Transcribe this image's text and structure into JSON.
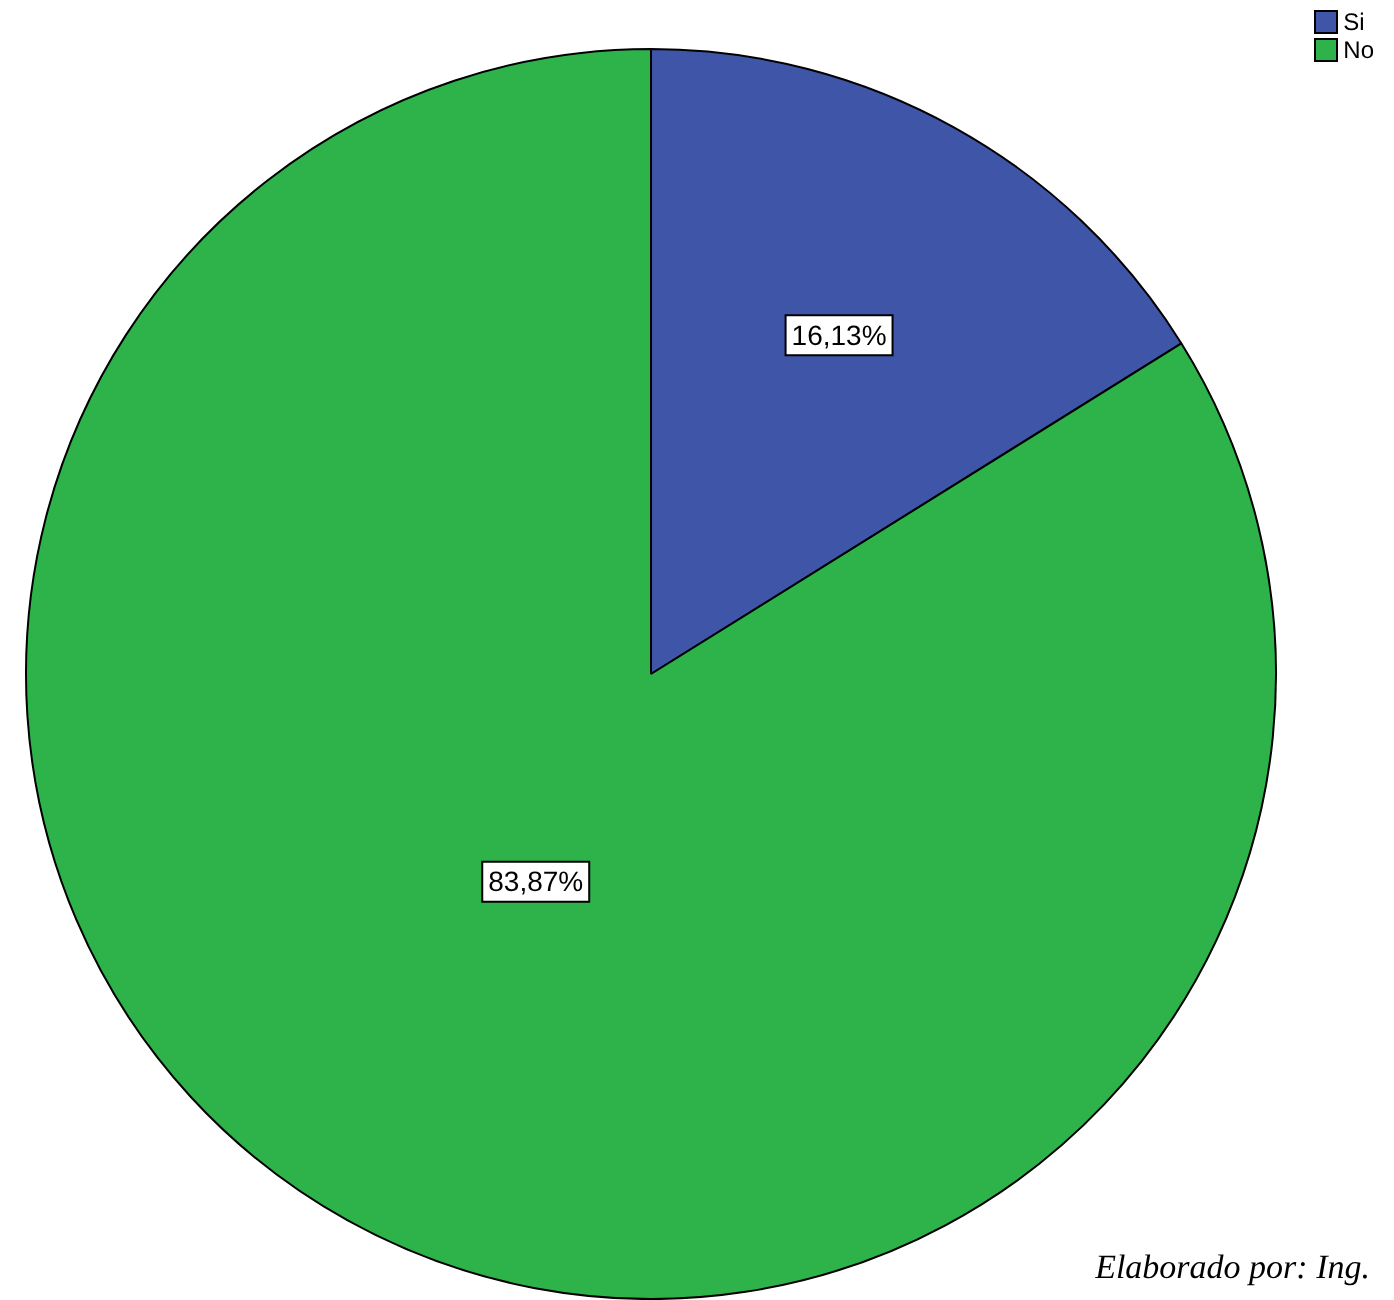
{
  "chart_data": {
    "type": "pie",
    "categories": [
      "Si",
      "No"
    ],
    "values": [
      16.13,
      83.87
    ],
    "colors": [
      "#3f56a8",
      "#2db34a"
    ],
    "value_labels": [
      "16,13%",
      "83,87%"
    ],
    "legend": "top right",
    "annotations": [
      "Elaborado por: Ing."
    ]
  }
}
